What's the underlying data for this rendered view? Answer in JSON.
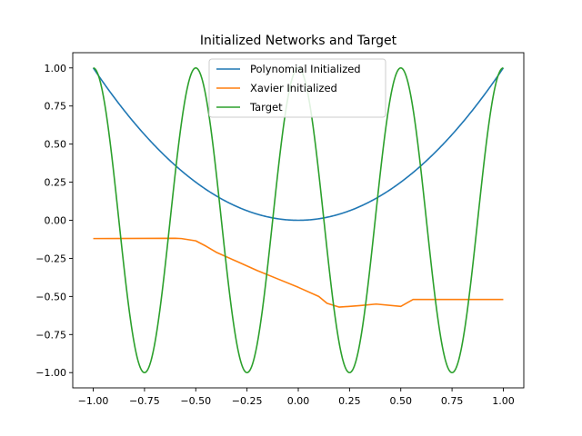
{
  "chart_data": {
    "type": "line",
    "title": "Initialized Networks and Target",
    "xlabel": "",
    "ylabel": "",
    "xlim": [
      -1.1,
      1.1
    ],
    "ylim": [
      -1.1,
      1.1
    ],
    "xticks": [
      -1.0,
      -0.75,
      -0.5,
      -0.25,
      0.0,
      0.25,
      0.5,
      0.75,
      1.0
    ],
    "xtick_labels": [
      "−1.00",
      "−0.75",
      "−0.50",
      "−0.25",
      "0.00",
      "0.25",
      "0.50",
      "0.75",
      "1.00"
    ],
    "yticks": [
      1.0,
      0.75,
      0.5,
      0.25,
      0.0,
      -0.25,
      -0.5,
      -0.75,
      -1.0
    ],
    "ytick_labels": [
      "1.00",
      "0.75",
      "0.50",
      "0.25",
      "0.00",
      "−0.25",
      "−0.50",
      "−0.75",
      "−1.00"
    ],
    "grid": false,
    "legend_position": "top-center",
    "series": [
      {
        "name": "Polynomial Initialized",
        "color": "#1f77b4",
        "formula": "x^2",
        "x": [
          -1.0,
          -0.9,
          -0.8,
          -0.7,
          -0.6,
          -0.5,
          -0.4,
          -0.3,
          -0.2,
          -0.1,
          0.0,
          0.1,
          0.2,
          0.3,
          0.4,
          0.5,
          0.6,
          0.7,
          0.8,
          0.9,
          1.0
        ],
        "y": [
          1.0,
          0.81,
          0.64,
          0.49,
          0.36,
          0.25,
          0.16,
          0.09,
          0.04,
          0.01,
          0.0,
          0.01,
          0.04,
          0.09,
          0.16,
          0.25,
          0.36,
          0.49,
          0.64,
          0.81,
          1.0
        ]
      },
      {
        "name": "Xavier Initialized",
        "color": "#ff7f0e",
        "x": [
          -1.0,
          -0.6,
          -0.57,
          -0.5,
          -0.45,
          -0.4,
          -0.3,
          -0.2,
          -0.1,
          0.0,
          0.1,
          0.14,
          0.2,
          0.3,
          0.38,
          0.5,
          0.56,
          0.7,
          0.85,
          1.0
        ],
        "y": [
          -0.12,
          -0.118,
          -0.12,
          -0.135,
          -0.17,
          -0.21,
          -0.27,
          -0.33,
          -0.385,
          -0.44,
          -0.5,
          -0.545,
          -0.57,
          -0.56,
          -0.55,
          -0.565,
          -0.52,
          -0.52,
          -0.52,
          -0.52
        ]
      },
      {
        "name": "Target",
        "color": "#2ca02c",
        "formula": "cos(4*pi*x)",
        "x": [
          -1.0,
          -0.875,
          -0.75,
          -0.625,
          -0.5,
          -0.375,
          -0.25,
          -0.125,
          0.0,
          0.125,
          0.25,
          0.375,
          0.5,
          0.625,
          0.75,
          0.875,
          1.0
        ],
        "y": [
          1.0,
          0.0,
          -1.0,
          0.0,
          1.0,
          0.0,
          -1.0,
          0.0,
          1.0,
          0.0,
          -1.0,
          0.0,
          1.0,
          0.0,
          -1.0,
          0.0,
          1.0
        ]
      }
    ]
  }
}
